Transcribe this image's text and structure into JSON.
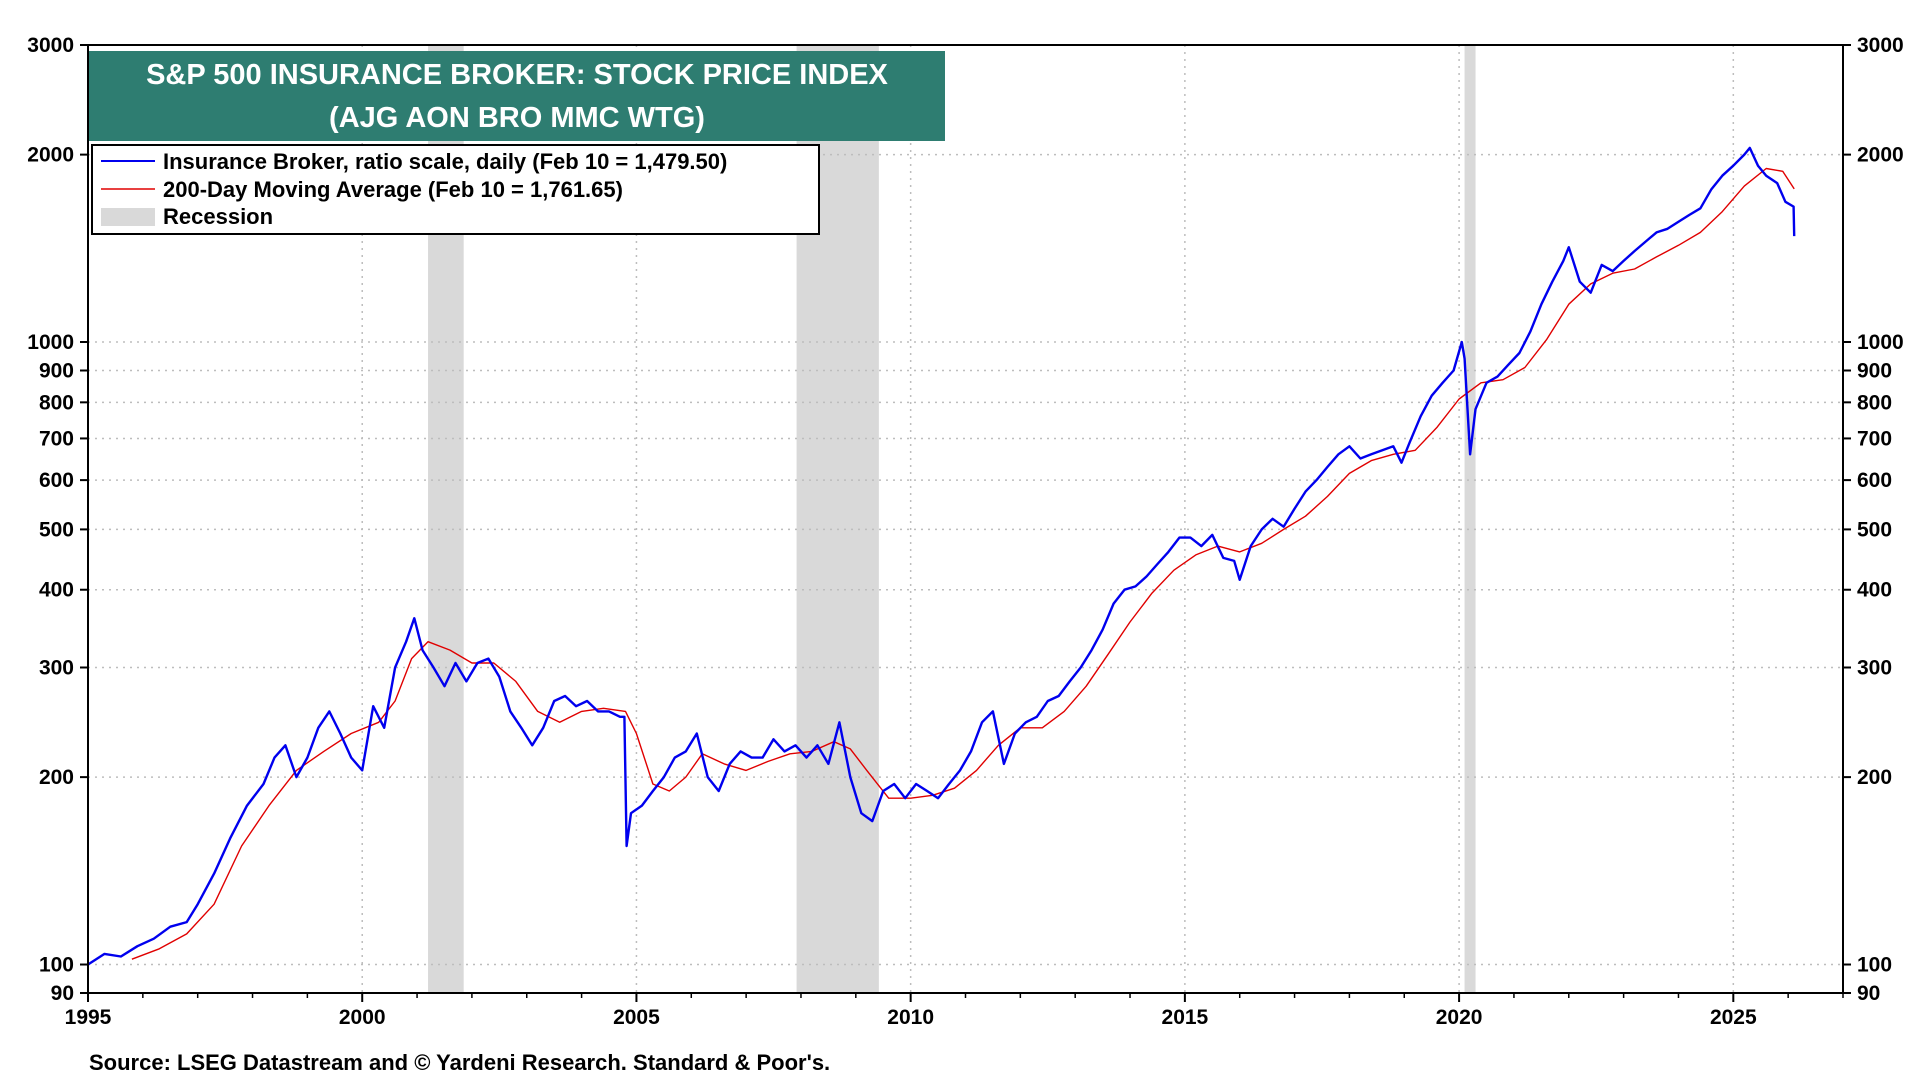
{
  "chart_data": {
    "type": "line",
    "title": "S&P 500 INSURANCE BROKER: STOCK PRICE INDEX",
    "subtitle": "(AJG AON BRO MMC WTG)",
    "source": "Source: LSEG Datastream and © Yardeni Research. Standard & Poor's.",
    "y_scale": "log",
    "ylim": [
      90,
      3000
    ],
    "xlim": [
      1995.0,
      2027.0
    ],
    "grid": true,
    "legend_position": "top-left",
    "x_ticks": [
      "1995",
      "2000",
      "2005",
      "2010",
      "2015",
      "2020",
      "2025"
    ],
    "y_ticks": [
      "90",
      "100",
      "200",
      "300",
      "400",
      "500",
      "600",
      "700",
      "800",
      "900",
      "1000",
      "2000",
      "3000"
    ],
    "legend": [
      {
        "label": "Insurance Broker, ratio scale, daily (Feb 10 = 1,479.50)",
        "color": "#0000ee",
        "kind": "line"
      },
      {
        "label": "200-Day Moving Average (Feb 10 = 1,761.65)",
        "color": "#e00000",
        "kind": "line"
      },
      {
        "label": "Recession",
        "color": "#d9d9d9",
        "kind": "box"
      }
    ],
    "recessions": [
      {
        "start": 2001.2,
        "end": 2001.85
      },
      {
        "start": 2007.92,
        "end": 2009.42
      },
      {
        "start": 2020.1,
        "end": 2020.3
      }
    ],
    "series": [
      {
        "name": "Insurance Broker, ratio scale, daily",
        "color": "#0000ee",
        "points": [
          [
            1995.0,
            100
          ],
          [
            1995.3,
            104
          ],
          [
            1995.6,
            103
          ],
          [
            1995.9,
            107
          ],
          [
            1996.2,
            110
          ],
          [
            1996.5,
            115
          ],
          [
            1996.8,
            117
          ],
          [
            1997.0,
            125
          ],
          [
            1997.3,
            140
          ],
          [
            1997.6,
            160
          ],
          [
            1997.9,
            180
          ],
          [
            1998.2,
            195
          ],
          [
            1998.4,
            215
          ],
          [
            1998.6,
            225
          ],
          [
            1998.8,
            200
          ],
          [
            1999.0,
            215
          ],
          [
            1999.2,
            240
          ],
          [
            1999.4,
            255
          ],
          [
            1999.6,
            235
          ],
          [
            1999.8,
            215
          ],
          [
            2000.0,
            205
          ],
          [
            2000.2,
            260
          ],
          [
            2000.4,
            240
          ],
          [
            2000.6,
            300
          ],
          [
            2000.8,
            330
          ],
          [
            2000.95,
            360
          ],
          [
            2001.1,
            320
          ],
          [
            2001.3,
            300
          ],
          [
            2001.5,
            280
          ],
          [
            2001.7,
            305
          ],
          [
            2001.9,
            285
          ],
          [
            2002.1,
            305
          ],
          [
            2002.3,
            310
          ],
          [
            2002.5,
            290
          ],
          [
            2002.7,
            255
          ],
          [
            2002.9,
            240
          ],
          [
            2003.1,
            225
          ],
          [
            2003.3,
            240
          ],
          [
            2003.5,
            265
          ],
          [
            2003.7,
            270
          ],
          [
            2003.9,
            260
          ],
          [
            2004.1,
            265
          ],
          [
            2004.3,
            255
          ],
          [
            2004.5,
            255
          ],
          [
            2004.7,
            250
          ],
          [
            2004.78,
            250
          ],
          [
            2004.82,
            155
          ],
          [
            2004.9,
            175
          ],
          [
            2005.1,
            180
          ],
          [
            2005.3,
            190
          ],
          [
            2005.5,
            200
          ],
          [
            2005.7,
            215
          ],
          [
            2005.9,
            220
          ],
          [
            2006.1,
            235
          ],
          [
            2006.3,
            200
          ],
          [
            2006.5,
            190
          ],
          [
            2006.7,
            210
          ],
          [
            2006.9,
            220
          ],
          [
            2007.1,
            215
          ],
          [
            2007.3,
            215
          ],
          [
            2007.5,
            230
          ],
          [
            2007.7,
            220
          ],
          [
            2007.9,
            225
          ],
          [
            2008.1,
            215
          ],
          [
            2008.3,
            225
          ],
          [
            2008.5,
            210
          ],
          [
            2008.7,
            245
          ],
          [
            2008.9,
            200
          ],
          [
            2009.1,
            175
          ],
          [
            2009.3,
            170
          ],
          [
            2009.5,
            190
          ],
          [
            2009.7,
            195
          ],
          [
            2009.9,
            185
          ],
          [
            2010.1,
            195
          ],
          [
            2010.3,
            190
          ],
          [
            2010.5,
            185
          ],
          [
            2010.7,
            195
          ],
          [
            2010.9,
            205
          ],
          [
            2011.1,
            220
          ],
          [
            2011.3,
            245
          ],
          [
            2011.5,
            255
          ],
          [
            2011.7,
            210
          ],
          [
            2011.9,
            235
          ],
          [
            2012.1,
            245
          ],
          [
            2012.3,
            250
          ],
          [
            2012.5,
            265
          ],
          [
            2012.7,
            270
          ],
          [
            2012.9,
            285
          ],
          [
            2013.1,
            300
          ],
          [
            2013.3,
            320
          ],
          [
            2013.5,
            345
          ],
          [
            2013.7,
            380
          ],
          [
            2013.9,
            400
          ],
          [
            2014.1,
            405
          ],
          [
            2014.3,
            420
          ],
          [
            2014.5,
            440
          ],
          [
            2014.7,
            460
          ],
          [
            2014.9,
            485
          ],
          [
            2015.1,
            485
          ],
          [
            2015.3,
            470
          ],
          [
            2015.5,
            490
          ],
          [
            2015.7,
            450
          ],
          [
            2015.9,
            445
          ],
          [
            2016.0,
            415
          ],
          [
            2016.2,
            470
          ],
          [
            2016.4,
            500
          ],
          [
            2016.6,
            520
          ],
          [
            2016.8,
            505
          ],
          [
            2017.0,
            540
          ],
          [
            2017.2,
            575
          ],
          [
            2017.4,
            600
          ],
          [
            2017.6,
            630
          ],
          [
            2017.8,
            660
          ],
          [
            2018.0,
            680
          ],
          [
            2018.2,
            650
          ],
          [
            2018.4,
            660
          ],
          [
            2018.6,
            670
          ],
          [
            2018.8,
            680
          ],
          [
            2018.95,
            640
          ],
          [
            2019.1,
            690
          ],
          [
            2019.3,
            760
          ],
          [
            2019.5,
            820
          ],
          [
            2019.7,
            860
          ],
          [
            2019.9,
            900
          ],
          [
            2020.05,
            1000
          ],
          [
            2020.1,
            940
          ],
          [
            2020.2,
            660
          ],
          [
            2020.3,
            780
          ],
          [
            2020.5,
            860
          ],
          [
            2020.7,
            880
          ],
          [
            2020.9,
            920
          ],
          [
            2021.1,
            960
          ],
          [
            2021.3,
            1040
          ],
          [
            2021.5,
            1150
          ],
          [
            2021.7,
            1250
          ],
          [
            2021.9,
            1350
          ],
          [
            2022.0,
            1420
          ],
          [
            2022.2,
            1250
          ],
          [
            2022.4,
            1200
          ],
          [
            2022.6,
            1330
          ],
          [
            2022.8,
            1300
          ],
          [
            2023.0,
            1350
          ],
          [
            2023.2,
            1400
          ],
          [
            2023.4,
            1450
          ],
          [
            2023.6,
            1500
          ],
          [
            2023.8,
            1520
          ],
          [
            2024.0,
            1560
          ],
          [
            2024.2,
            1600
          ],
          [
            2024.4,
            1640
          ],
          [
            2024.6,
            1760
          ],
          [
            2024.8,
            1850
          ],
          [
            2025.0,
            1920
          ],
          [
            2025.2,
            2000
          ],
          [
            2025.3,
            2050
          ],
          [
            2025.45,
            1920
          ],
          [
            2025.6,
            1850
          ],
          [
            2025.8,
            1800
          ],
          [
            2025.95,
            1680
          ],
          [
            2026.1,
            1650
          ],
          [
            2026.11,
            1479.5
          ]
        ]
      },
      {
        "name": "200-Day Moving Average",
        "color": "#e00000",
        "points": [
          [
            1995.8,
            102
          ],
          [
            1996.3,
            106
          ],
          [
            1996.8,
            112
          ],
          [
            1997.3,
            125
          ],
          [
            1997.8,
            155
          ],
          [
            1998.3,
            180
          ],
          [
            1998.8,
            205
          ],
          [
            1999.3,
            220
          ],
          [
            1999.8,
            235
          ],
          [
            2000.3,
            245
          ],
          [
            2000.6,
            265
          ],
          [
            2000.9,
            310
          ],
          [
            2001.2,
            330
          ],
          [
            2001.6,
            320
          ],
          [
            2002.0,
            305
          ],
          [
            2002.4,
            305
          ],
          [
            2002.8,
            285
          ],
          [
            2003.2,
            255
          ],
          [
            2003.6,
            245
          ],
          [
            2004.0,
            255
          ],
          [
            2004.4,
            258
          ],
          [
            2004.8,
            255
          ],
          [
            2005.0,
            235
          ],
          [
            2005.3,
            195
          ],
          [
            2005.6,
            190
          ],
          [
            2005.9,
            200
          ],
          [
            2006.2,
            218
          ],
          [
            2006.6,
            210
          ],
          [
            2007.0,
            205
          ],
          [
            2007.4,
            212
          ],
          [
            2007.8,
            218
          ],
          [
            2008.2,
            220
          ],
          [
            2008.6,
            228
          ],
          [
            2008.9,
            222
          ],
          [
            2009.2,
            205
          ],
          [
            2009.6,
            185
          ],
          [
            2010.0,
            185
          ],
          [
            2010.4,
            187
          ],
          [
            2010.8,
            192
          ],
          [
            2011.2,
            205
          ],
          [
            2011.6,
            225
          ],
          [
            2012.0,
            240
          ],
          [
            2012.4,
            240
          ],
          [
            2012.8,
            255
          ],
          [
            2013.2,
            280
          ],
          [
            2013.6,
            315
          ],
          [
            2014.0,
            355
          ],
          [
            2014.4,
            395
          ],
          [
            2014.8,
            430
          ],
          [
            2015.2,
            455
          ],
          [
            2015.6,
            470
          ],
          [
            2016.0,
            460
          ],
          [
            2016.4,
            475
          ],
          [
            2016.8,
            500
          ],
          [
            2017.2,
            525
          ],
          [
            2017.6,
            565
          ],
          [
            2018.0,
            615
          ],
          [
            2018.4,
            645
          ],
          [
            2018.8,
            660
          ],
          [
            2019.2,
            670
          ],
          [
            2019.6,
            730
          ],
          [
            2020.0,
            810
          ],
          [
            2020.4,
            860
          ],
          [
            2020.8,
            870
          ],
          [
            2021.2,
            910
          ],
          [
            2021.6,
            1010
          ],
          [
            2022.0,
            1150
          ],
          [
            2022.4,
            1240
          ],
          [
            2022.8,
            1290
          ],
          [
            2023.2,
            1310
          ],
          [
            2023.6,
            1370
          ],
          [
            2024.0,
            1430
          ],
          [
            2024.4,
            1500
          ],
          [
            2024.8,
            1620
          ],
          [
            2025.2,
            1780
          ],
          [
            2025.6,
            1900
          ],
          [
            2025.9,
            1880
          ],
          [
            2026.11,
            1761.65
          ]
        ]
      }
    ]
  }
}
